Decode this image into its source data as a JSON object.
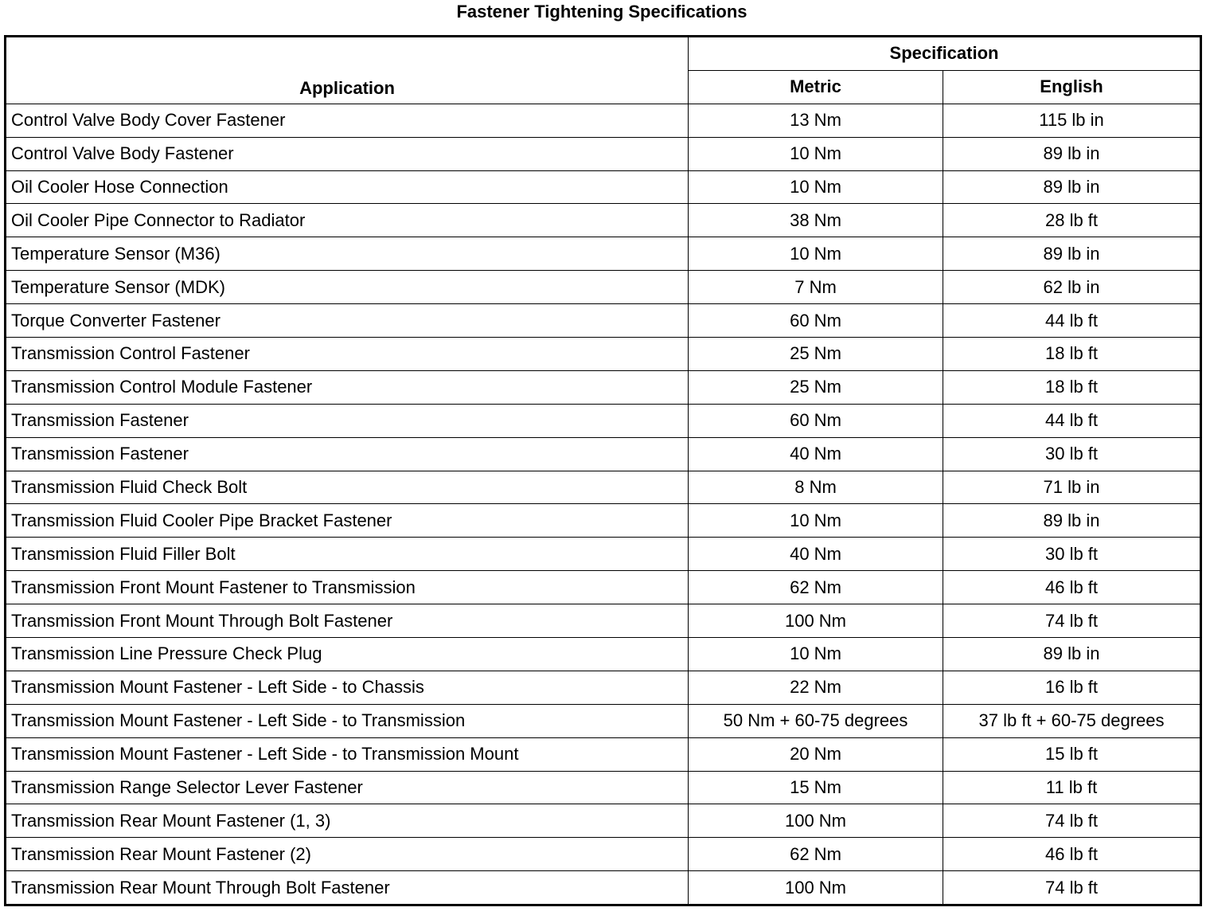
{
  "title": "Fastener Tightening Specifications",
  "table": {
    "headers": {
      "application": "Application",
      "specification": "Specification",
      "metric": "Metric",
      "english": "English"
    },
    "rows": [
      [
        "Control Valve Body Cover Fastener",
        "13 Nm",
        "115 lb in"
      ],
      [
        "Control Valve Body Fastener",
        "10 Nm",
        "89 lb in"
      ],
      [
        "Oil Cooler Hose Connection",
        "10 Nm",
        "89 lb in"
      ],
      [
        "Oil Cooler Pipe Connector to Radiator",
        "38 Nm",
        "28 lb ft"
      ],
      [
        "Temperature Sensor (M36)",
        "10 Nm",
        "89 lb in"
      ],
      [
        "Temperature Sensor (MDK)",
        "7 Nm",
        "62 lb in"
      ],
      [
        "Torque Converter Fastener",
        "60 Nm",
        "44 lb ft"
      ],
      [
        "Transmission Control Fastener",
        "25 Nm",
        "18 lb ft"
      ],
      [
        "Transmission Control Module Fastener",
        "25 Nm",
        "18 lb ft"
      ],
      [
        "Transmission Fastener",
        "60 Nm",
        "44 lb ft"
      ],
      [
        "Transmission Fastener",
        "40 Nm",
        "30 lb ft"
      ],
      [
        "Transmission Fluid Check Bolt",
        "8 Nm",
        "71 lb in"
      ],
      [
        "Transmission Fluid Cooler Pipe Bracket Fastener",
        "10 Nm",
        "89 lb in"
      ],
      [
        "Transmission Fluid Filler Bolt",
        "40 Nm",
        "30 lb ft"
      ],
      [
        "Transmission Front Mount Fastener to Transmission",
        "62 Nm",
        "46 lb ft"
      ],
      [
        "Transmission Front Mount Through Bolt Fastener",
        "100 Nm",
        "74 lb ft"
      ],
      [
        "Transmission Line Pressure Check Plug",
        "10 Nm",
        "89 lb in"
      ],
      [
        "Transmission Mount Fastener - Left Side - to Chassis",
        "22 Nm",
        "16 lb ft"
      ],
      [
        "Transmission Mount Fastener - Left Side - to Transmission",
        "50 Nm + 60-75 degrees",
        "37 lb ft + 60-75 degrees"
      ],
      [
        "Transmission Mount Fastener - Left Side - to Transmission Mount",
        "20 Nm",
        "15 lb ft"
      ],
      [
        "Transmission Range Selector Lever Fastener",
        "15 Nm",
        "11 lb ft"
      ],
      [
        "Transmission Rear Mount Fastener (1, 3)",
        "100 Nm",
        "74 lb ft"
      ],
      [
        "Transmission Rear Mount Fastener (2)",
        "62 Nm",
        "46 lb ft"
      ],
      [
        "Transmission Rear Mount Through Bolt Fastener",
        "100 Nm",
        "74 lb ft"
      ]
    ]
  }
}
